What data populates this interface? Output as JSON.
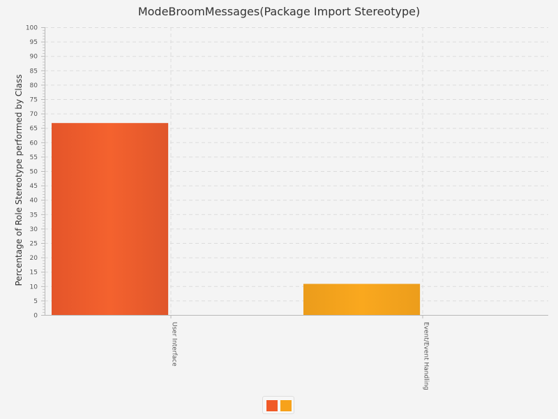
{
  "chart_data": {
    "type": "bar",
    "title": "ModeBroomMessages(Package Import Stereotype)",
    "xlabel": "",
    "ylabel": "Percentage of Role Stereotype performed by Class",
    "categories": [
      "User Interface",
      "Event/Event Handling"
    ],
    "values": [
      66.7,
      10.8
    ],
    "colors": [
      "#f05a28",
      "#f7a21b"
    ],
    "ylim": [
      0,
      100
    ],
    "yticks": [
      0,
      5,
      10,
      15,
      20,
      25,
      30,
      35,
      40,
      45,
      50,
      55,
      60,
      65,
      70,
      75,
      80,
      85,
      90,
      95,
      100
    ],
    "grid": true,
    "legend": {
      "position": "bottom",
      "entries": []
    }
  }
}
